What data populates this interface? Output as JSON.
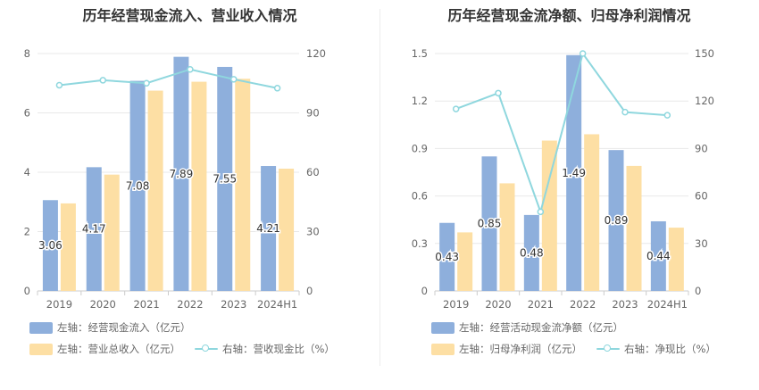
{
  "chart_data": [
    {
      "type": "bar",
      "title": "历年经营现金流入、营业收入情况",
      "categories": [
        "2019",
        "2020",
        "2021",
        "2022",
        "2023",
        "2024H1"
      ],
      "series": [
        {
          "name": "左轴：经营现金流入（亿元）",
          "type": "bar",
          "axis": "left",
          "values": [
            3.06,
            4.17,
            7.08,
            7.89,
            7.55,
            4.21
          ],
          "labels": [
            "3.06",
            "4.17",
            "7.08",
            "7.89",
            "7.55",
            "4.21"
          ],
          "color": "#8eafdc"
        },
        {
          "name": "左轴：营业总收入（亿元）",
          "type": "bar",
          "axis": "left",
          "values": [
            2.95,
            3.92,
            6.75,
            7.05,
            7.15,
            4.12
          ],
          "color": "#fddfa4"
        },
        {
          "name": "右轴：营收现金比（%）",
          "type": "line",
          "axis": "right",
          "values": [
            104,
            106.5,
            105,
            112,
            107,
            102.5
          ],
          "color": "#8fd7de"
        }
      ],
      "ylim_left": [
        0,
        8
      ],
      "yticks_left": [
        "0",
        "2",
        "4",
        "6",
        "8"
      ],
      "ylim_right": [
        0,
        120
      ],
      "yticks_right": [
        "0",
        "30",
        "60",
        "90",
        "120"
      ],
      "grid": true,
      "legend_position": "bottom-left"
    },
    {
      "type": "bar",
      "title": "历年经营现金流净额、归母净利润情况",
      "categories": [
        "2019",
        "2020",
        "2021",
        "2022",
        "2023",
        "2024H1"
      ],
      "series": [
        {
          "name": "左轴：经营活动现金流净额（亿元）",
          "type": "bar",
          "axis": "left",
          "values": [
            0.43,
            0.85,
            0.48,
            1.49,
            0.89,
            0.44
          ],
          "labels": [
            "0.43",
            "0.85",
            "0.48",
            "1.49",
            "0.89",
            "0.44"
          ],
          "color": "#8eafdc"
        },
        {
          "name": "左轴：归母净利润（亿元）",
          "type": "bar",
          "axis": "left",
          "values": [
            0.37,
            0.68,
            0.95,
            0.99,
            0.79,
            0.4
          ],
          "color": "#fddfa4"
        },
        {
          "name": "右轴：净现比（%）",
          "type": "line",
          "axis": "right",
          "values": [
            115,
            125,
            50,
            150,
            113,
            111
          ],
          "color": "#8fd7de"
        }
      ],
      "ylim_left": [
        0,
        1.5
      ],
      "yticks_left": [
        "0",
        "0.3",
        "0.6",
        "0.9",
        "1.2",
        "1.5"
      ],
      "ylim_right": [
        0,
        150
      ],
      "yticks_right": [
        "0",
        "30",
        "60",
        "90",
        "120",
        "150"
      ],
      "grid": true,
      "legend_position": "bottom-left"
    }
  ]
}
